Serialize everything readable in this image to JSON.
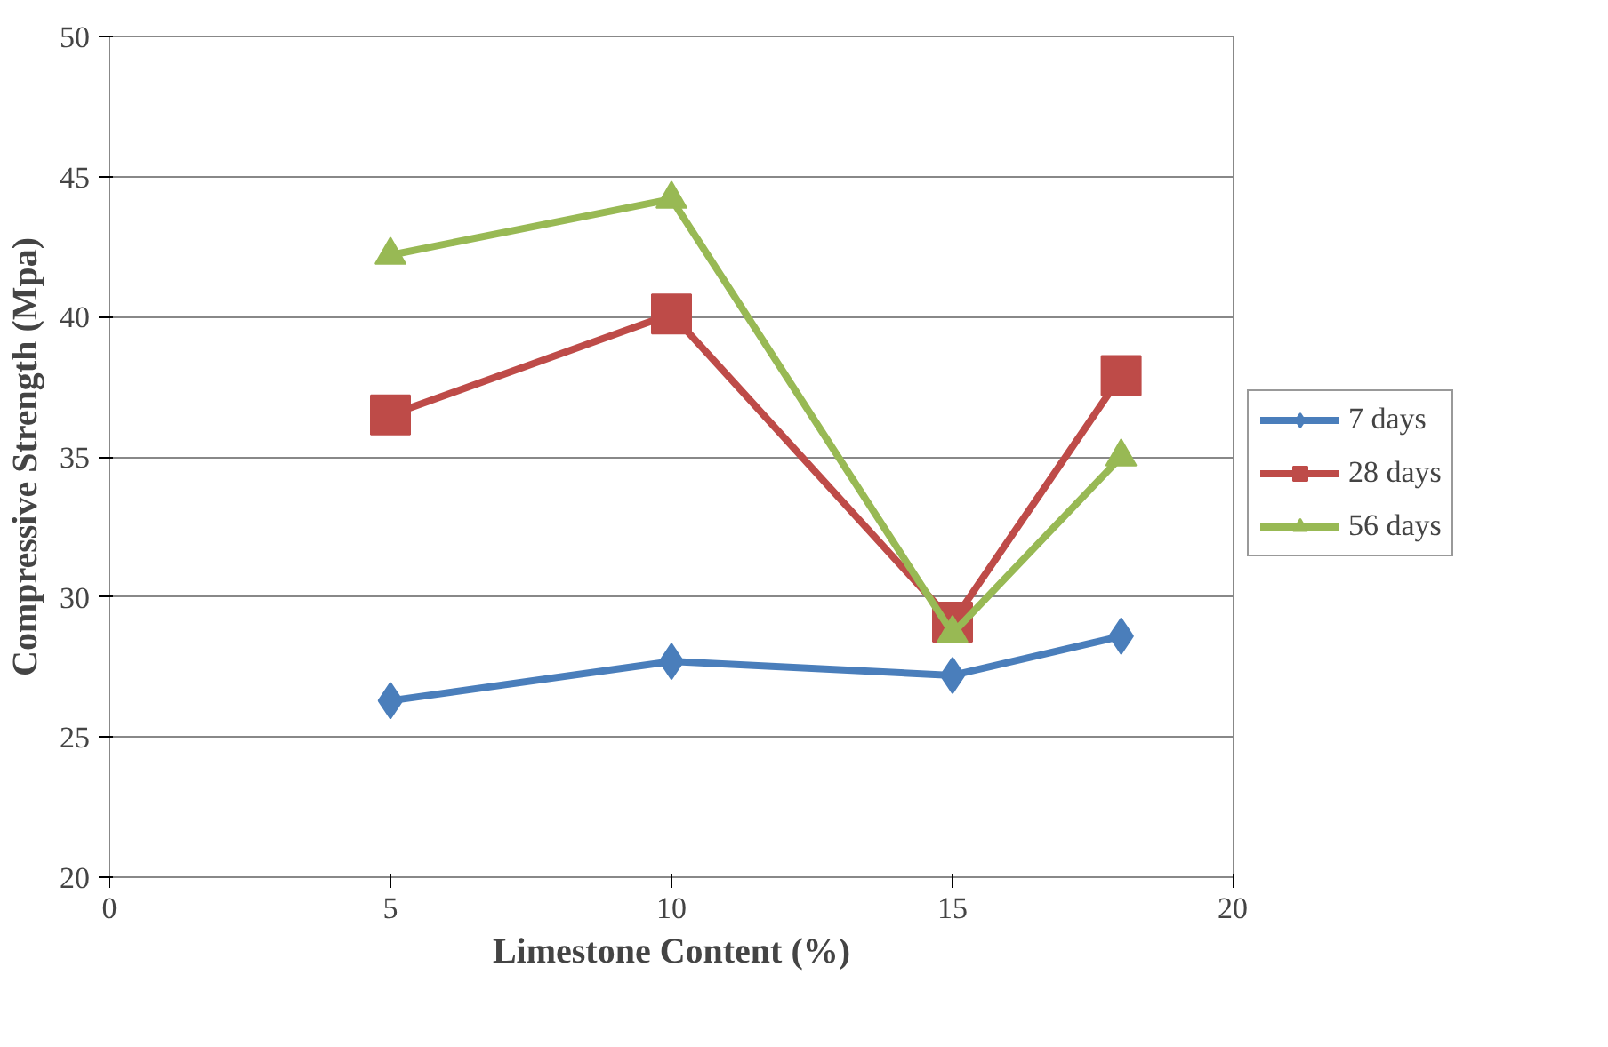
{
  "chart_data": {
    "type": "line",
    "xlabel": "Limestone Content (%)",
    "ylabel": "Compressive Strength (Mpa)",
    "x": [
      5,
      10,
      15,
      18
    ],
    "series": [
      {
        "name": "7 days",
        "color": "#4a7ebb",
        "marker": "diamond",
        "values": [
          26.3,
          27.7,
          27.2,
          28.6
        ]
      },
      {
        "name": "28 days",
        "color": "#be4b48",
        "marker": "square",
        "values": [
          36.5,
          40.1,
          29.1,
          37.9
        ]
      },
      {
        "name": "56 days",
        "color": "#98b954",
        "marker": "triangle",
        "values": [
          42.2,
          44.2,
          28.7,
          35.0
        ]
      }
    ],
    "xlim": [
      0,
      20
    ],
    "xticks": [
      0,
      5,
      10,
      15,
      20
    ],
    "ylim": [
      20,
      50
    ],
    "yticks": [
      20,
      25,
      30,
      35,
      40,
      45,
      50
    ],
    "grid": "y",
    "legend": "right",
    "line_style": "solid"
  }
}
